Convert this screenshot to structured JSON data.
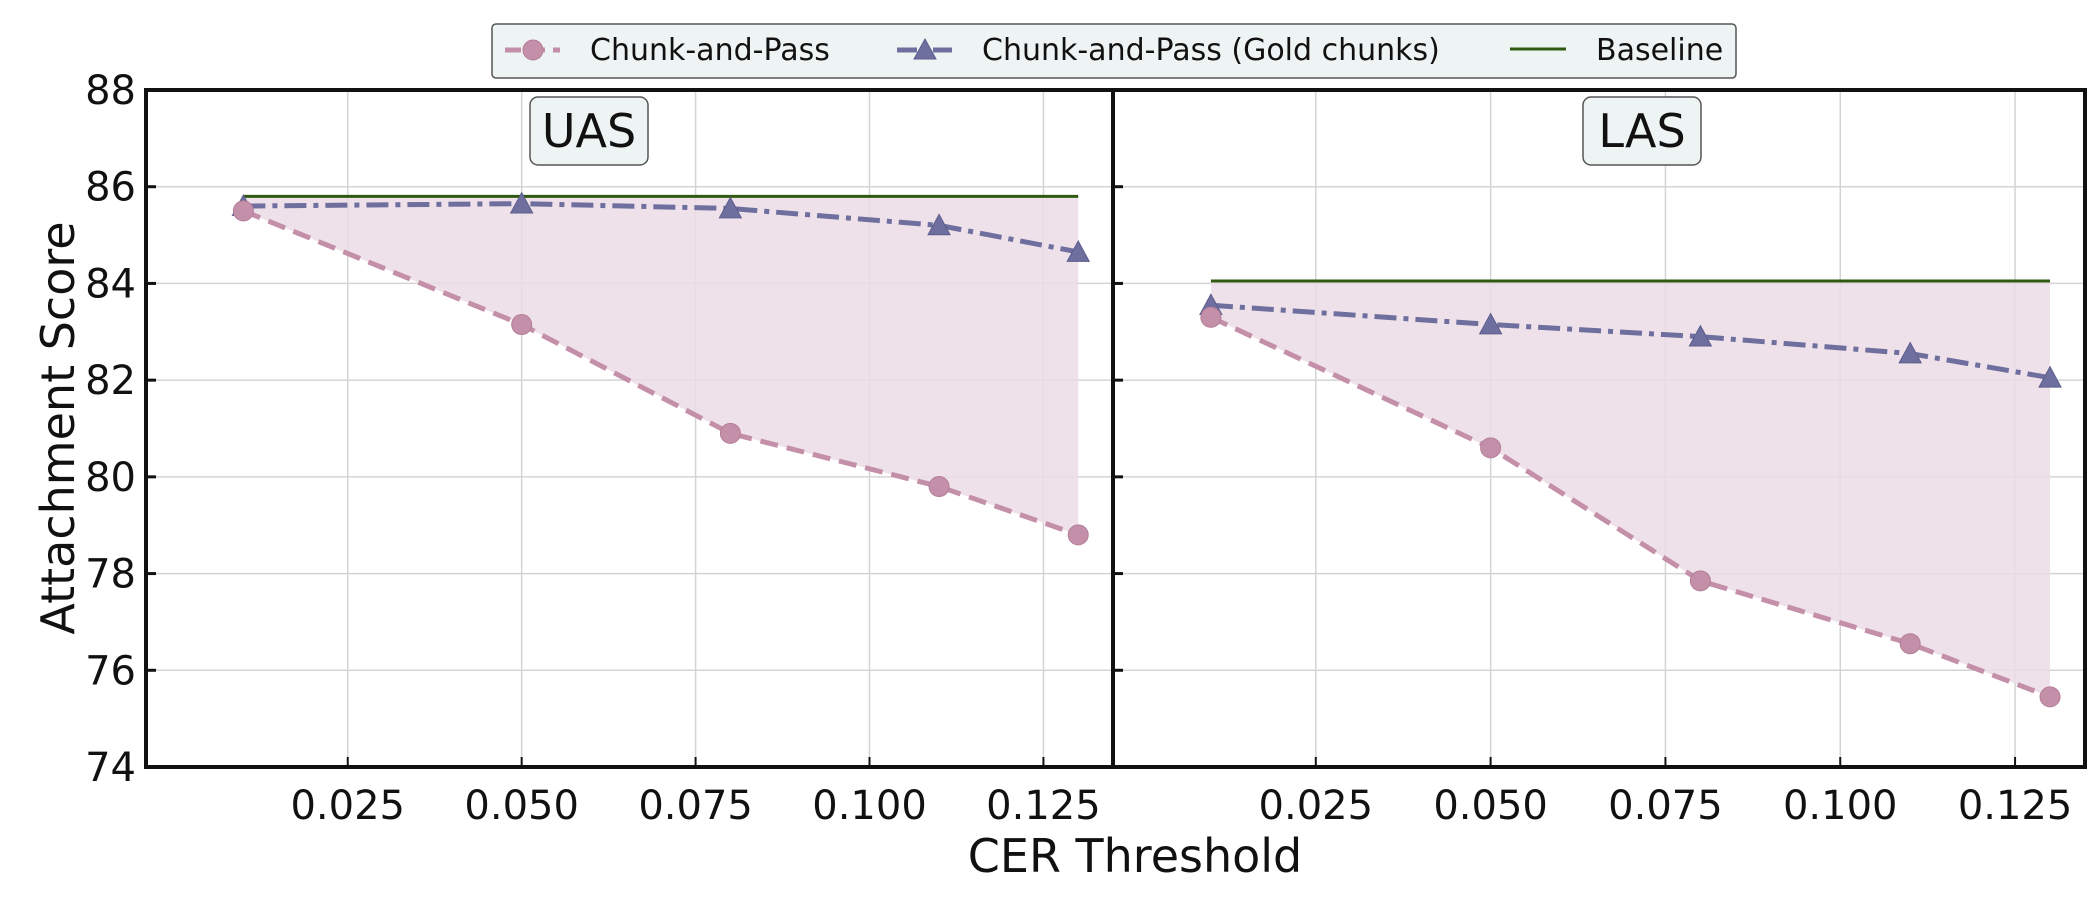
{
  "chart_data": {
    "type": "line",
    "ylabel": "Attachment Score",
    "xlabel": "CER Threshold",
    "ylim": [
      74,
      88
    ],
    "yticks": [
      "74",
      "76",
      "78",
      "80",
      "82",
      "84",
      "86",
      "88"
    ],
    "xticks": [
      "0.025",
      "0.050",
      "0.075",
      "0.100",
      "0.125"
    ],
    "grid": true,
    "legend_position": "top-center",
    "legend": [
      "Chunk-and-Pass",
      "Chunk-and-Pass (Gold chunks)",
      "Baseline"
    ],
    "colors": {
      "chunk_and_pass": "#c48fa8",
      "gold_chunks": "#6e6f9e",
      "baseline": "#2e5a12",
      "fill": "#ecdce5",
      "title_box": "#eef4f3",
      "legend_box": "#eef4f3"
    },
    "panels": [
      {
        "title": "UAS",
        "x": [
          0.01,
          0.05,
          0.08,
          0.11,
          0.13
        ],
        "xlim": [
          -0.004,
          0.135
        ],
        "series": [
          {
            "name": "Chunk-and-Pass",
            "style": "dashed",
            "marker": "circle",
            "values": [
              85.5,
              83.15,
              80.9,
              79.8,
              78.8
            ]
          },
          {
            "name": "Chunk-and-Pass (Gold chunks)",
            "style": "dashdot",
            "marker": "triangle",
            "values": [
              85.6,
              85.65,
              85.55,
              85.2,
              84.65
            ]
          },
          {
            "name": "Baseline",
            "style": "solid",
            "marker": "none",
            "values": [
              85.8,
              85.8,
              85.8,
              85.8,
              85.8
            ]
          }
        ]
      },
      {
        "title": "LAS",
        "x": [
          0.01,
          0.05,
          0.08,
          0.11,
          0.13
        ],
        "xlim": [
          -0.004,
          0.135
        ],
        "series": [
          {
            "name": "Chunk-and-Pass",
            "style": "dashed",
            "marker": "circle",
            "values": [
              83.3,
              80.6,
              77.85,
              76.55,
              75.45
            ]
          },
          {
            "name": "Chunk-and-Pass (Gold chunks)",
            "style": "dashdot",
            "marker": "triangle",
            "values": [
              83.55,
              83.15,
              82.9,
              82.55,
              82.05
            ]
          },
          {
            "name": "Baseline",
            "style": "solid",
            "marker": "none",
            "values": [
              84.05,
              84.05,
              84.05,
              84.05,
              84.05
            ]
          }
        ]
      }
    ]
  }
}
